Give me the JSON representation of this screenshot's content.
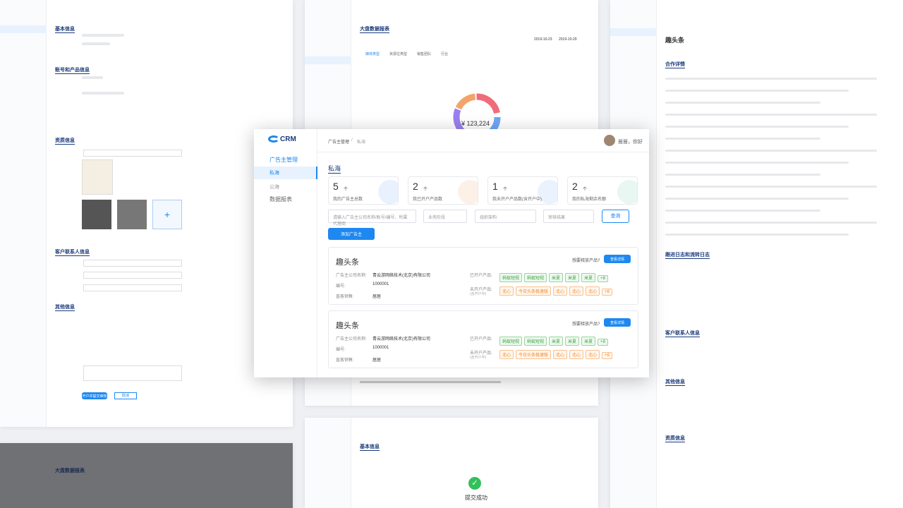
{
  "main": {
    "logo": "CRM",
    "breadcrumb": [
      "广告主管理",
      "私海"
    ],
    "user": "居居，你好",
    "nav": [
      {
        "label": "广告主管理",
        "children": [
          "私海",
          "公海"
        ]
      },
      {
        "label": "数据报表",
        "children": []
      }
    ],
    "page_title": "私海",
    "stats": [
      {
        "value": 5,
        "unit": "个",
        "label": "我的广告主总数"
      },
      {
        "value": 2,
        "unit": "个",
        "label": "我已开户产品数"
      },
      {
        "value": 1,
        "unit": "个",
        "label": "我未开户产品数(含开户中)"
      },
      {
        "value": 2,
        "unit": "个",
        "label": "我的私海剩余名额"
      }
    ],
    "search_placeholder": "请输入广告主公司名称/账号/编号、所属代理商",
    "filters": [
      "业务阶段",
      "组织架构",
      "审核结果"
    ],
    "search_button": "查询",
    "add_button": "添加广告主",
    "cards": [
      {
        "name": "趣头条",
        "question": "想要释放产品?",
        "detail_button": "查看详情",
        "company_label": "广告主公司名称:",
        "company": "青云游网络技术(北京)有限公司",
        "id_label": "编号:",
        "id": "1000001",
        "sales_label": "直客销售:",
        "sales": "居居",
        "opened_label": "已开户产品:",
        "opened": [
          "蚂蚁短视",
          "蚂蚁短视",
          "米夏",
          "米夏",
          "米夏",
          "+8"
        ],
        "unopened_label": "未开户产品:",
        "unopened_note": "(含开户中)",
        "unopened": [
          "北心",
          "今日头条极速版",
          "北心",
          "北心",
          "北心",
          "+8"
        ]
      },
      {
        "name": "趣头条",
        "question": "想要释放产品?",
        "detail_button": "查看详情",
        "company_label": "广告主公司名称:",
        "company": "青云游网络技术(北京)有限公司",
        "id_label": "编号:",
        "id": "1000001",
        "sales_label": "直客销售:",
        "sales": "居居",
        "opened_label": "已开户产品:",
        "opened": [
          "蚂蚁短视",
          "蚂蚁短视",
          "米夏",
          "米夏",
          "米夏",
          "+8"
        ],
        "unopened_label": "未开户产品:",
        "unopened_note": "(含开户中)",
        "unopened": [
          "北心",
          "今日头条极速版",
          "北心",
          "北心",
          "北心",
          "+8"
        ]
      }
    ]
  },
  "background": {
    "left": {
      "sections": [
        "基本信息",
        "账号和产品信息",
        "资质信息",
        "客户联系人信息",
        "其他信息"
      ],
      "submit": "开户并提交审核",
      "cancel": "取消"
    },
    "middle": {
      "title": "大盘数据报表",
      "tabs": [
        "媒体类型",
        "资源位类型",
        "销售团队",
        "行业"
      ],
      "total": "¥ 123,224",
      "date_from": "2019-10-23",
      "date_to": "2019-10-29"
    },
    "right": {
      "name": "趣头条",
      "sections": [
        "合作详情",
        "跟进日志和流转日志",
        "客户联系人信息",
        "其他信息",
        "资质信息"
      ]
    },
    "bottom_middle": {
      "title": "基本信息",
      "result": "提交成功"
    },
    "bottom_left": {
      "title": "大盘数据报表"
    }
  }
}
